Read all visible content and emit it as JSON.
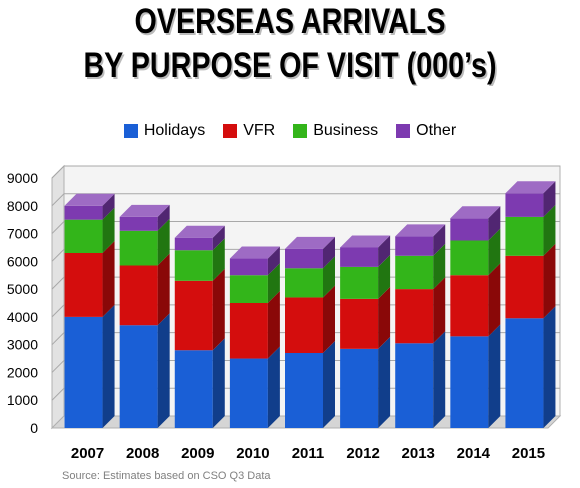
{
  "title_line1": "OVERSEAS ARRIVALS",
  "title_line2": "BY PURPOSE OF VISIT (000’s)",
  "source": "Source: Estimates based on CSO Q3 Data",
  "chart_data": {
    "type": "bar",
    "stacked": true,
    "categories": [
      "2007",
      "2008",
      "2009",
      "2010",
      "2011",
      "2012",
      "2013",
      "2014",
      "2015"
    ],
    "series": [
      {
        "name": "Holidays",
        "color": "#1a5fd6",
        "values": [
          4000,
          3700,
          2800,
          2500,
          2700,
          2850,
          3050,
          3300,
          3950
        ]
      },
      {
        "name": "VFR",
        "color": "#d40d0d",
        "values": [
          2300,
          2150,
          2500,
          2000,
          2000,
          1800,
          1950,
          2200,
          2250
        ]
      },
      {
        "name": "Business",
        "color": "#33b51a",
        "values": [
          1200,
          1250,
          1100,
          1000,
          1050,
          1150,
          1200,
          1250,
          1400
        ]
      },
      {
        "name": "Other",
        "color": "#7d3ab0",
        "values": [
          500,
          500,
          450,
          600,
          700,
          700,
          700,
          800,
          850
        ]
      }
    ],
    "ylim": [
      0,
      9000
    ],
    "yticks": [
      "0",
      "1000",
      "2000",
      "3000",
      "4000",
      "5000",
      "6000",
      "7000",
      "8000",
      "9000"
    ],
    "grid": true,
    "legend_position": "top"
  }
}
